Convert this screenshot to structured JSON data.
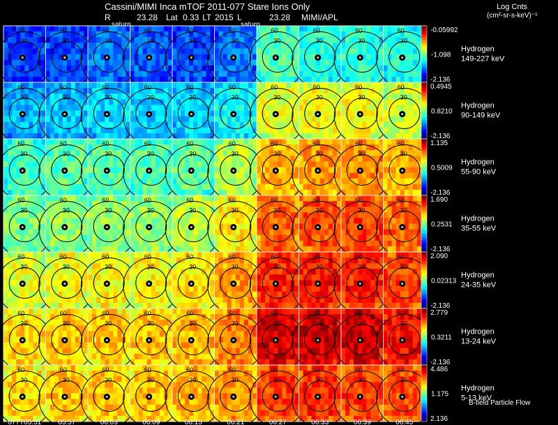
{
  "header": {
    "title": "Cassini/MIMI Inca mTOF  2011-077   Stare   Ions Only",
    "r_label": "R",
    "r_value": "23.28",
    "lat_label": "Lat",
    "lat_value": "0.33",
    "lt_label": "LT",
    "lt_value": "2015",
    "l_label": "L",
    "l_value": "23.28",
    "institution": "MIMI/APL",
    "saturn_label": "saturn",
    "units_title": "Log Cnts",
    "units_sub": "(cm²-sr-s-keV)⁻¹",
    "footnote": "B-field Particle Flow"
  },
  "chart_data": {
    "type": "heatmap",
    "title": "Cassini/MIMI Inca mTOF  2011-077   Stare   Ions Only",
    "time_labels": [
      "077T05:51",
      "05:57",
      "06:03",
      "06:09",
      "06:15",
      "06:21",
      "06:27",
      "06:33",
      "06:39",
      "06:45"
    ],
    "contour_labels": [
      "30",
      "60"
    ],
    "rows": [
      {
        "species": "Hydrogen",
        "energy": "149-227 keV",
        "max": "-0.05992",
        "mid": "-1.098",
        "min": "-2.136",
        "levels": [
          0.18,
          0.2,
          0.24,
          0.22,
          0.2,
          0.24,
          0.45,
          0.42,
          0.42,
          0.4
        ]
      },
      {
        "species": "Hydrogen",
        "energy": "90-149 keV",
        "max": "0.4945",
        "mid": "0.8210",
        "min": "-2.136",
        "levels": [
          0.3,
          0.32,
          0.34,
          0.33,
          0.33,
          0.38,
          0.6,
          0.62,
          0.62,
          0.58
        ]
      },
      {
        "species": "Hydrogen",
        "energy": "55-90 keV",
        "max": "1.135",
        "mid": "0.5009",
        "min": "-2.136",
        "levels": [
          0.44,
          0.46,
          0.46,
          0.45,
          0.46,
          0.55,
          0.7,
          0.72,
          0.74,
          0.7
        ]
      },
      {
        "species": "Hydrogen",
        "energy": "35-55 keV",
        "max": "1.690",
        "mid": "0.2531",
        "min": "-2.136",
        "levels": [
          0.5,
          0.52,
          0.52,
          0.52,
          0.56,
          0.64,
          0.78,
          0.8,
          0.82,
          0.78
        ]
      },
      {
        "species": "Hydrogen",
        "energy": "24-35 keV",
        "max": "2.090",
        "mid": "0.02313",
        "min": "-2.136",
        "levels": [
          0.6,
          0.62,
          0.63,
          0.63,
          0.65,
          0.72,
          0.85,
          0.86,
          0.85,
          0.82
        ]
      },
      {
        "species": "Hydrogen",
        "energy": "13-24 keV",
        "max": "2.779",
        "mid": "0.3211",
        "min": "-2.136",
        "levels": [
          0.66,
          0.68,
          0.68,
          0.68,
          0.7,
          0.76,
          0.92,
          0.92,
          0.92,
          0.88
        ]
      },
      {
        "species": "Hydrogen",
        "energy": "5-13 keV",
        "max": "4.486",
        "mid": "1.175",
        "min": "2.136",
        "levels": [
          0.66,
          0.68,
          0.68,
          0.68,
          0.7,
          0.74,
          0.82,
          0.84,
          0.82,
          0.8
        ]
      }
    ]
  }
}
